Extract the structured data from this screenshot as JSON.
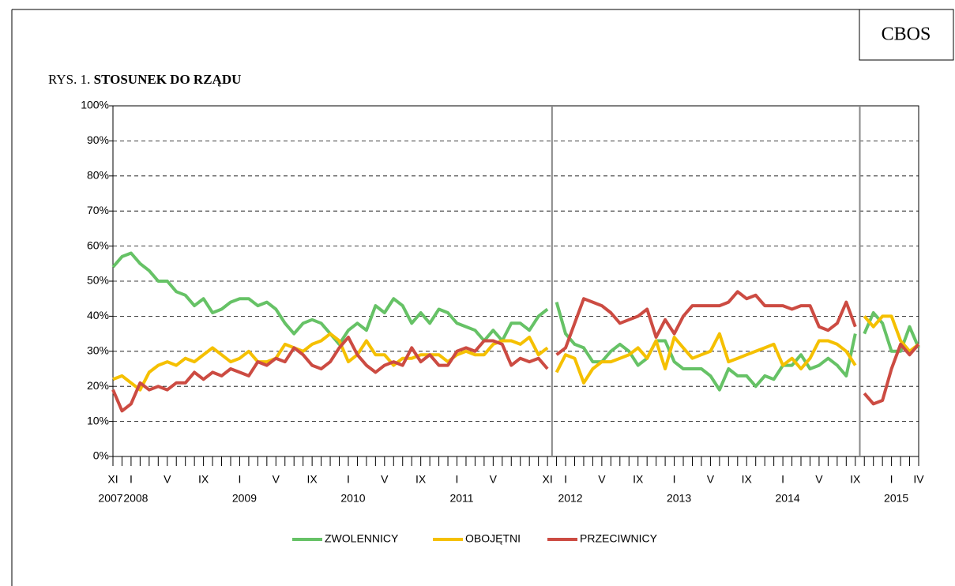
{
  "badge": "CBOS",
  "chart_data": {
    "type": "line",
    "title_prefix": "RYS. 1.",
    "title": "STOSUNEK DO RZĄDU",
    "categories": [
      "XI",
      null,
      "I",
      null,
      null,
      null,
      "V",
      null,
      null,
      null,
      "IX",
      null,
      null,
      null,
      "I",
      null,
      null,
      null,
      "V",
      null,
      null,
      null,
      "IX",
      null,
      null,
      null,
      "I",
      null,
      null,
      null,
      "V",
      null,
      null,
      null,
      "IX",
      null,
      null,
      null,
      "I",
      null,
      null,
      null,
      "V",
      null,
      null,
      null,
      null,
      null,
      "XI",
      null,
      "I",
      null,
      null,
      null,
      "V",
      null,
      null,
      null,
      "IX",
      null,
      null,
      null,
      "I",
      null,
      null,
      null,
      "V",
      null,
      null,
      null,
      "IX",
      null,
      null,
      null,
      "I",
      null,
      null,
      null,
      "V",
      null,
      null,
      null,
      "IX",
      null,
      null,
      null,
      "I",
      null,
      null,
      "IV"
    ],
    "years": [
      "2007",
      null,
      "2008",
      null,
      null,
      null,
      null,
      null,
      null,
      null,
      null,
      null,
      null,
      null,
      "2009",
      null,
      null,
      null,
      null,
      null,
      null,
      null,
      null,
      null,
      null,
      null,
      "2010",
      null,
      null,
      null,
      null,
      null,
      null,
      null,
      null,
      null,
      null,
      null,
      "2011",
      null,
      null,
      null,
      null,
      null,
      null,
      null,
      null,
      null,
      null,
      null,
      "2012",
      null,
      null,
      null,
      null,
      null,
      null,
      null,
      null,
      null,
      null,
      null,
      "2013",
      null,
      null,
      null,
      null,
      null,
      null,
      null,
      null,
      null,
      null,
      null,
      "2014",
      null,
      null,
      null,
      null,
      null,
      null,
      null,
      null,
      null,
      null,
      null,
      "2015",
      null,
      null,
      null
    ],
    "breaks": [
      49,
      83
    ],
    "series": [
      {
        "name": "ZWOLENNICY",
        "color": "#66c266",
        "values": [
          54,
          57,
          58,
          55,
          53,
          50,
          50,
          47,
          46,
          43,
          45,
          41,
          42,
          44,
          45,
          45,
          43,
          44,
          42,
          38,
          35,
          38,
          39,
          38,
          35,
          32,
          36,
          38,
          36,
          43,
          41,
          45,
          43,
          38,
          41,
          38,
          42,
          41,
          38,
          37,
          36,
          33,
          36,
          33,
          38,
          38,
          36,
          40,
          42,
          44,
          35,
          32,
          31,
          27,
          27,
          30,
          32,
          30,
          26,
          28,
          33,
          33,
          27,
          25,
          25,
          25,
          23,
          19,
          25,
          23,
          23,
          20,
          23,
          22,
          26,
          26,
          29,
          25,
          26,
          28,
          26,
          23,
          35,
          35,
          41,
          38,
          30,
          30,
          37,
          31
        ]
      },
      {
        "name": "OBOJĘTNI",
        "color": "#f5c000",
        "values": [
          22,
          23,
          21,
          19,
          24,
          26,
          27,
          26,
          28,
          27,
          29,
          31,
          29,
          27,
          28,
          30,
          27,
          27,
          28,
          32,
          31,
          30,
          32,
          33,
          35,
          33,
          27,
          29,
          33,
          29,
          29,
          26,
          28,
          28,
          29,
          29,
          29,
          27,
          29,
          30,
          29,
          29,
          32,
          33,
          33,
          32,
          34,
          29,
          31,
          24,
          29,
          28,
          21,
          25,
          27,
          27,
          28,
          29,
          31,
          28,
          33,
          25,
          34,
          31,
          28,
          29,
          30,
          35,
          27,
          28,
          29,
          30,
          31,
          32,
          26,
          28,
          25,
          28,
          33,
          33,
          32,
          30,
          26,
          40,
          37,
          40,
          40,
          33,
          30,
          32
        ]
      },
      {
        "name": "PRZECIWNICY",
        "color": "#cc4b42",
        "values": [
          19,
          13,
          15,
          21,
          19,
          20,
          19,
          21,
          21,
          24,
          22,
          24,
          23,
          25,
          24,
          23,
          27,
          26,
          28,
          27,
          31,
          29,
          26,
          25,
          27,
          31,
          34,
          29,
          26,
          24,
          26,
          27,
          26,
          31,
          27,
          29,
          26,
          26,
          30,
          31,
          30,
          33,
          33,
          32,
          26,
          28,
          27,
          28,
          25,
          29,
          31,
          38,
          45,
          44,
          43,
          41,
          38,
          39,
          40,
          42,
          34,
          39,
          35,
          40,
          43,
          43,
          43,
          43,
          44,
          47,
          45,
          46,
          43,
          43,
          43,
          42,
          43,
          43,
          37,
          36,
          38,
          44,
          37,
          18,
          15,
          16,
          25,
          32,
          29,
          32
        ]
      }
    ],
    "ylim": [
      0,
      100
    ],
    "yticks": [
      {
        "value": 0,
        "label": "0%"
      },
      {
        "value": 10,
        "label": "10%"
      },
      {
        "value": 20,
        "label": "20%"
      },
      {
        "value": 30,
        "label": "30%"
      },
      {
        "value": 40,
        "label": "40%"
      },
      {
        "value": 50,
        "label": "50%"
      },
      {
        "value": 60,
        "label": "60%"
      },
      {
        "value": 70,
        "label": "70%"
      },
      {
        "value": 80,
        "label": "80%"
      },
      {
        "value": 90,
        "label": "90%"
      },
      {
        "value": 100,
        "label": "100%"
      }
    ],
    "grid": true,
    "legend": "bottom"
  }
}
